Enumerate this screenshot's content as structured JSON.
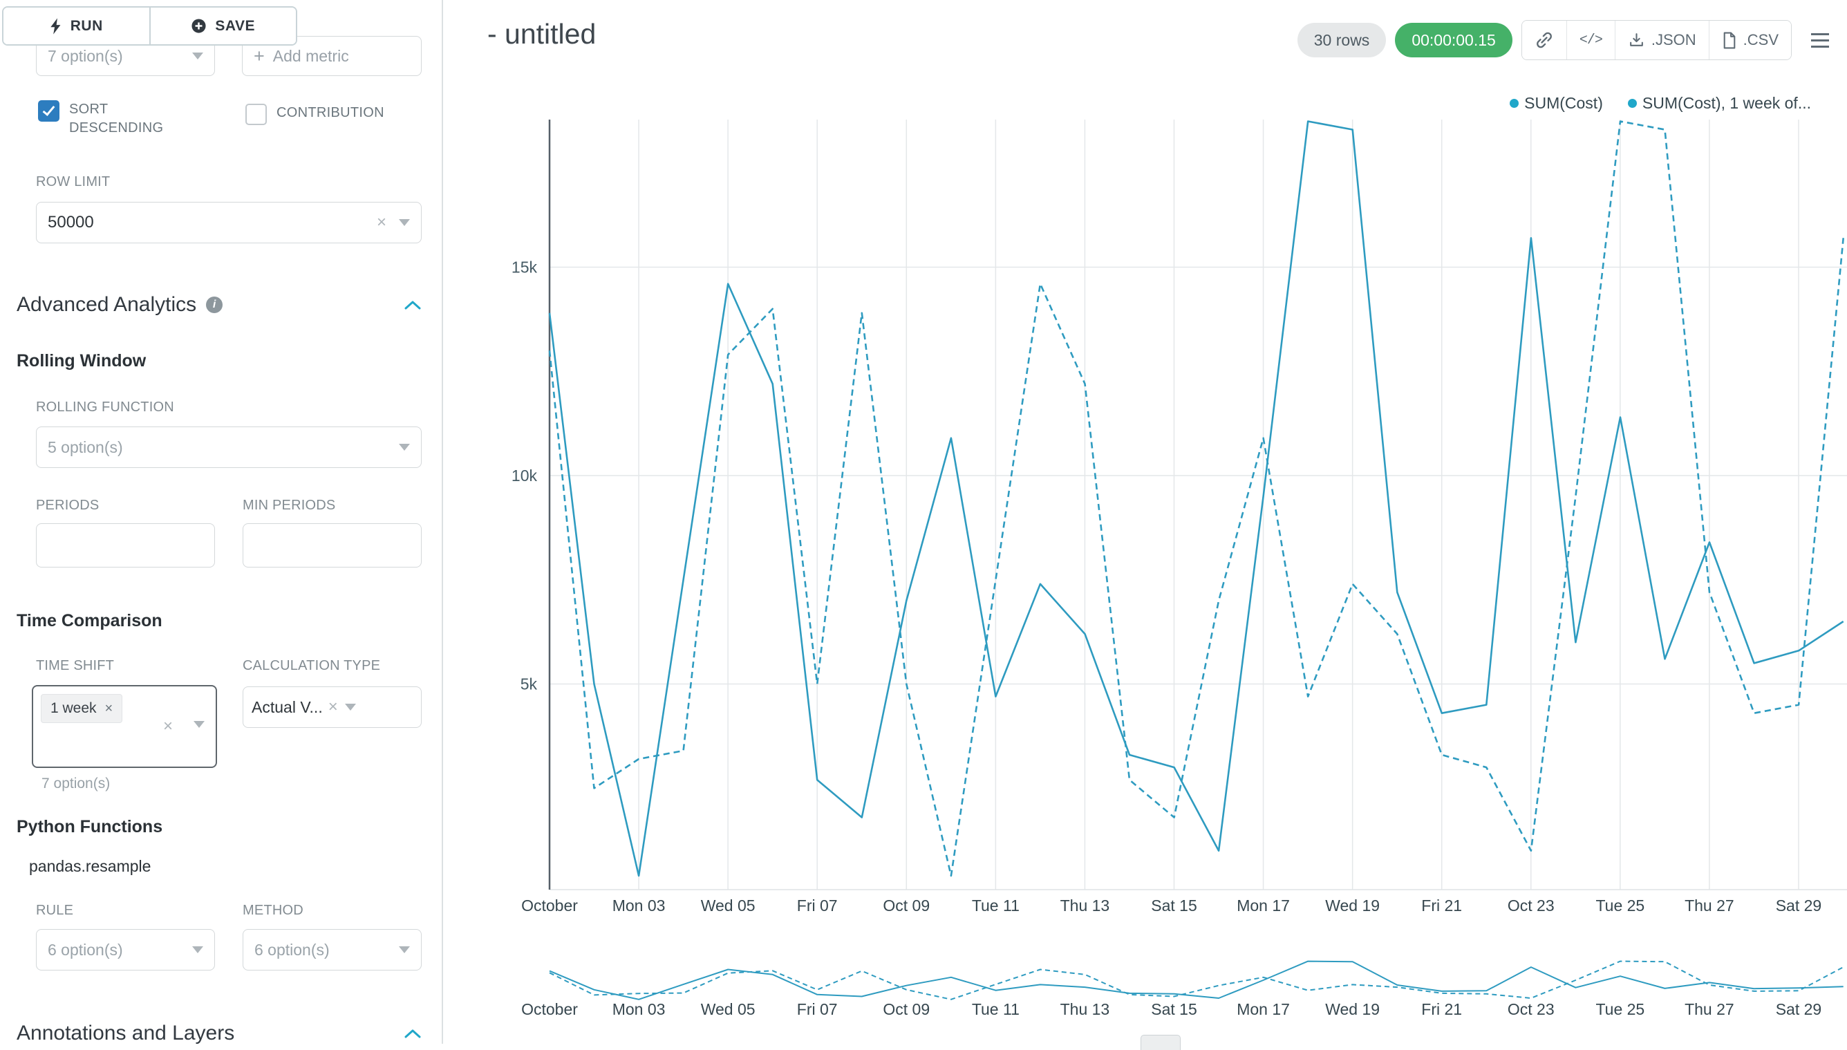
{
  "colors": {
    "accent": "#20a7c9",
    "series_line": "#2e9bc0",
    "timer_badge_bg": "#45b168",
    "checkbox_checked": "#2d7dbf"
  },
  "icons": {
    "clear": "×",
    "plus": "+",
    "code": "</>",
    "info": "i"
  },
  "sidebar": {
    "run_button": "RUN",
    "save_button": "SAVE",
    "metric_select_value": "7 option(s)",
    "add_metric_button": "Add metric",
    "sort_descending": "SORT DESCENDING",
    "contribution": "CONTRIBUTION",
    "row_limit_label": "ROW LIMIT",
    "row_limit_value": "50000",
    "advanced_analytics": "Advanced Analytics",
    "rolling_window": "Rolling Window",
    "rolling_function_label": "ROLLING FUNCTION",
    "rolling_function_value": "5 option(s)",
    "periods_label": "PERIODS",
    "min_periods_label": "MIN PERIODS",
    "periods_value": "",
    "min_periods_value": "",
    "time_comparison": "Time Comparison",
    "time_shift_label": "TIME SHIFT",
    "time_shift_tag": "1 week",
    "time_shift_hint": "7 option(s)",
    "calculation_type_label": "CALCULATION TYPE",
    "calculation_type_value": "Actual V...",
    "python_functions": "Python Functions",
    "pandas_resample": "pandas.resample",
    "rule_label": "RULE",
    "rule_value": "6 option(s)",
    "method_label": "METHOD",
    "method_value": "6 option(s)",
    "annotations_layers": "Annotations and Layers"
  },
  "header": {
    "title": "- untitled",
    "rows_badge": "30 rows",
    "timer_badge": "00:00:00.15",
    "export_json": ".JSON",
    "export_csv": ".CSV"
  },
  "legend": {
    "items": [
      {
        "label": "SUM(Cost)"
      },
      {
        "label": "SUM(Cost), 1 week of..."
      }
    ]
  },
  "chart_data": {
    "type": "line",
    "title": "",
    "color": "#2e9bc0",
    "x_unit": "day of October",
    "x": [
      1,
      2,
      3,
      4,
      5,
      6,
      7,
      8,
      9,
      10,
      11,
      12,
      13,
      14,
      15,
      16,
      17,
      18,
      19,
      20,
      21,
      22,
      23,
      24,
      25,
      26,
      27,
      28,
      29,
      30
    ],
    "tick_labels": [
      "October",
      "Mon 03",
      "Wed 05",
      "Fri 07",
      "Oct 09",
      "Tue 11",
      "Thu 13",
      "Sat 15",
      "Mon 17",
      "Wed 19",
      "Fri 21",
      "Oct 23",
      "Tue 25",
      "Thu 27",
      "Sat 29"
    ],
    "y_ticks": [
      {
        "value": 5000,
        "label": "5k"
      },
      {
        "value": 10000,
        "label": "10k"
      },
      {
        "value": 15000,
        "label": "15k"
      }
    ],
    "ylim": [
      0,
      18600
    ],
    "grid": true,
    "legend_position": "top-right",
    "series": [
      {
        "name": "SUM(Cost)",
        "line_style": "solid",
        "values": [
          13900,
          5000,
          400,
          7500,
          14600,
          12200,
          2700,
          1800,
          7000,
          10900,
          4700,
          7400,
          6200,
          3300,
          3000,
          1000,
          9500,
          18500,
          18300,
          7200,
          4300,
          4500,
          15700,
          6000,
          11400,
          5600,
          8400,
          5500,
          5800,
          6500
        ]
      },
      {
        "name": "SUM(Cost), 1 week of...",
        "line_style": "dashed",
        "values": [
          13000,
          2500,
          3200,
          3400,
          12900,
          14000,
          5000,
          13900,
          5000,
          400,
          7500,
          14600,
          12200,
          2700,
          1800,
          7000,
          10900,
          4700,
          7400,
          6200,
          3300,
          3000,
          1000,
          9500,
          18500,
          18300,
          7200,
          4300,
          4500,
          15700
        ]
      }
    ]
  }
}
